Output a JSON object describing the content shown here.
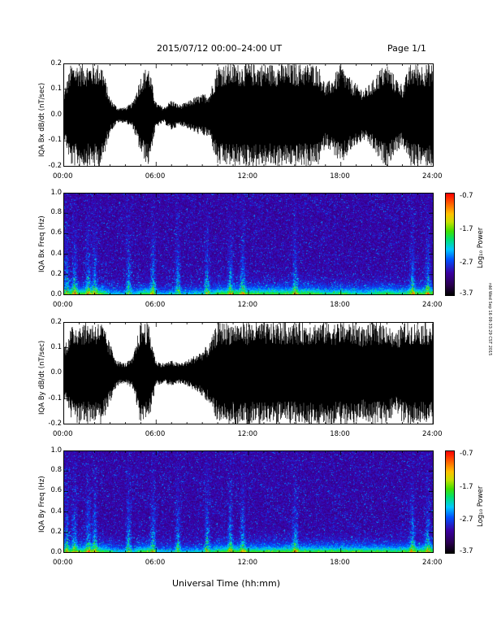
{
  "header": {
    "date_range": "2015/07/12  00:00–24:00 UT",
    "page": "Page 1/1"
  },
  "footer": {
    "xlabel": "Universal Time (hh:mm)",
    "stamp": "rdd Wed Sep 16 09:33:29 CST 2015"
  },
  "x_ticks": [
    "00:00",
    "06:00",
    "12:00",
    "18:00",
    "24:00"
  ],
  "colorbar": {
    "label": "Log₁₀ Power",
    "ticks": [
      "-0.7",
      "-1.7",
      "-2.7",
      "-3.7"
    ]
  },
  "chart_data": [
    {
      "type": "line",
      "ylabel": "IQA Bx dB/dt (nT/sec)",
      "xlim": [
        0,
        24
      ],
      "ylim": [
        -0.2,
        0.2
      ],
      "y_ticks": [
        "-0.2",
        "-0.1",
        "0.0",
        "0.1",
        "0.2"
      ],
      "envelope": {
        "x": [
          0,
          0.5,
          1,
          1.5,
          2,
          2.5,
          3,
          3.5,
          4,
          4.5,
          5,
          5.5,
          6,
          6.5,
          7,
          7.5,
          8,
          8.5,
          9,
          9.5,
          10,
          10.5,
          11,
          11.5,
          12,
          12.5,
          13,
          13.5,
          14,
          14.5,
          15,
          15.5,
          16,
          16.5,
          17,
          17.5,
          18,
          18.5,
          19,
          19.5,
          20,
          20.5,
          21,
          21.5,
          22,
          22.5,
          23,
          23.5,
          24
        ],
        "y": [
          0.08,
          0.2,
          0.2,
          0.2,
          0.2,
          0.2,
          0.07,
          0.03,
          0.03,
          0.05,
          0.15,
          0.2,
          0.05,
          0.03,
          0.06,
          0.04,
          0.05,
          0.07,
          0.08,
          0.09,
          0.2,
          0.2,
          0.2,
          0.2,
          0.2,
          0.2,
          0.2,
          0.2,
          0.2,
          0.2,
          0.2,
          0.2,
          0.2,
          0.2,
          0.12,
          0.15,
          0.2,
          0.15,
          0.12,
          0.1,
          0.13,
          0.18,
          0.2,
          0.15,
          0.12,
          0.2,
          0.2,
          0.2,
          0.2
        ]
      }
    },
    {
      "type": "heatmap",
      "ylabel": "IQA Bx Freq (Hz)",
      "xlim": [
        0,
        24
      ],
      "ylim": [
        0,
        1.0
      ],
      "y_ticks": [
        "0.0",
        "0.2",
        "0.4",
        "0.6",
        "0.8",
        "1.0"
      ],
      "zlim": [
        -3.7,
        -0.7
      ]
    },
    {
      "type": "line",
      "ylabel": "IQA By dB/dt (nT/sec)",
      "xlim": [
        0,
        24
      ],
      "ylim": [
        -0.2,
        0.2
      ],
      "y_ticks": [
        "-0.2",
        "-0.1",
        "0.0",
        "0.1",
        "0.2"
      ],
      "envelope": {
        "x": [
          0,
          0.5,
          1,
          1.5,
          2,
          2.5,
          3,
          3.5,
          4,
          4.5,
          5,
          5.5,
          6,
          6.5,
          7,
          7.5,
          8,
          8.5,
          9,
          9.5,
          10,
          10.5,
          11,
          11.5,
          12,
          12.5,
          13,
          13.5,
          14,
          14.5,
          15,
          15.5,
          16,
          16.5,
          17,
          17.5,
          18,
          18.5,
          19,
          19.5,
          20,
          20.5,
          21,
          21.5,
          22,
          22.5,
          23,
          23.5,
          24
        ],
        "y": [
          0.1,
          0.18,
          0.2,
          0.2,
          0.2,
          0.2,
          0.12,
          0.05,
          0.04,
          0.06,
          0.2,
          0.2,
          0.05,
          0.04,
          0.05,
          0.04,
          0.05,
          0.07,
          0.09,
          0.12,
          0.2,
          0.2,
          0.2,
          0.2,
          0.2,
          0.2,
          0.2,
          0.2,
          0.2,
          0.2,
          0.2,
          0.2,
          0.2,
          0.2,
          0.2,
          0.2,
          0.2,
          0.2,
          0.2,
          0.18,
          0.2,
          0.2,
          0.2,
          0.15,
          0.2,
          0.2,
          0.2,
          0.2,
          0.2
        ]
      }
    },
    {
      "type": "heatmap",
      "ylabel": "IQA By Freq (Hz)",
      "xlim": [
        0,
        24
      ],
      "ylim": [
        0,
        1.0
      ],
      "y_ticks": [
        "0.0",
        "0.2",
        "0.4",
        "0.6",
        "0.8",
        "1.0"
      ],
      "zlim": [
        -3.7,
        -0.7
      ]
    }
  ]
}
